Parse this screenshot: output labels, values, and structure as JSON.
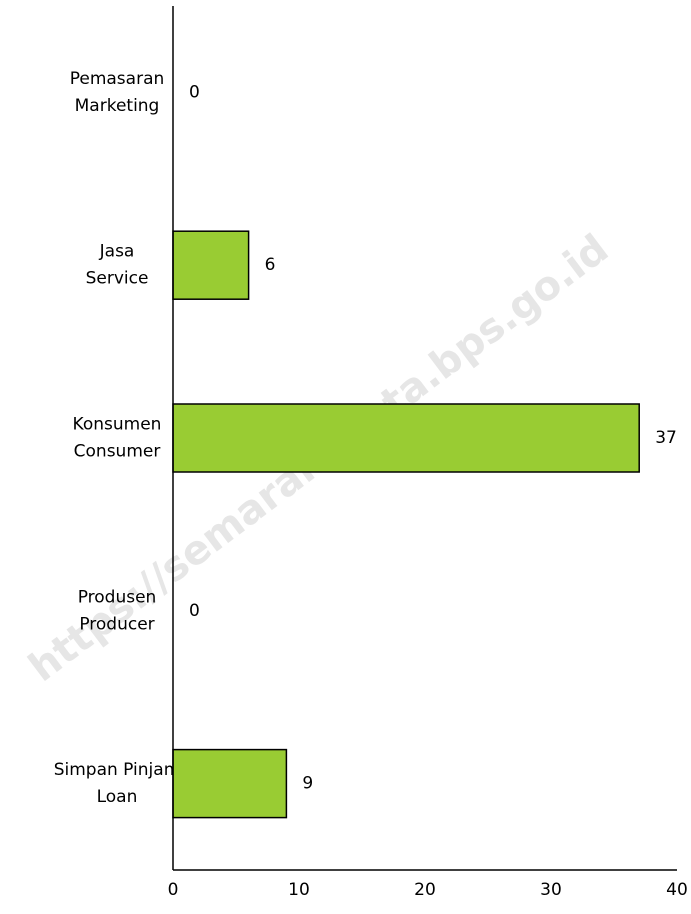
{
  "chart_data": {
    "type": "bar",
    "orientation": "horizontal",
    "categories": [
      [
        "Pemasaran",
        "Marketing"
      ],
      [
        "Jasa",
        "Service"
      ],
      [
        "Konsumen",
        "Consumer"
      ],
      [
        "Produsen",
        "Producer"
      ],
      [
        "Simpan Pinjam",
        "Loan"
      ]
    ],
    "values": [
      0,
      6,
      37,
      0,
      9
    ],
    "color": "#99cc33",
    "xlim": [
      0,
      40
    ],
    "xticks": [
      0,
      10,
      20,
      30,
      40
    ],
    "grid": false,
    "watermark": "https://semarangkota.bps.go.id"
  }
}
